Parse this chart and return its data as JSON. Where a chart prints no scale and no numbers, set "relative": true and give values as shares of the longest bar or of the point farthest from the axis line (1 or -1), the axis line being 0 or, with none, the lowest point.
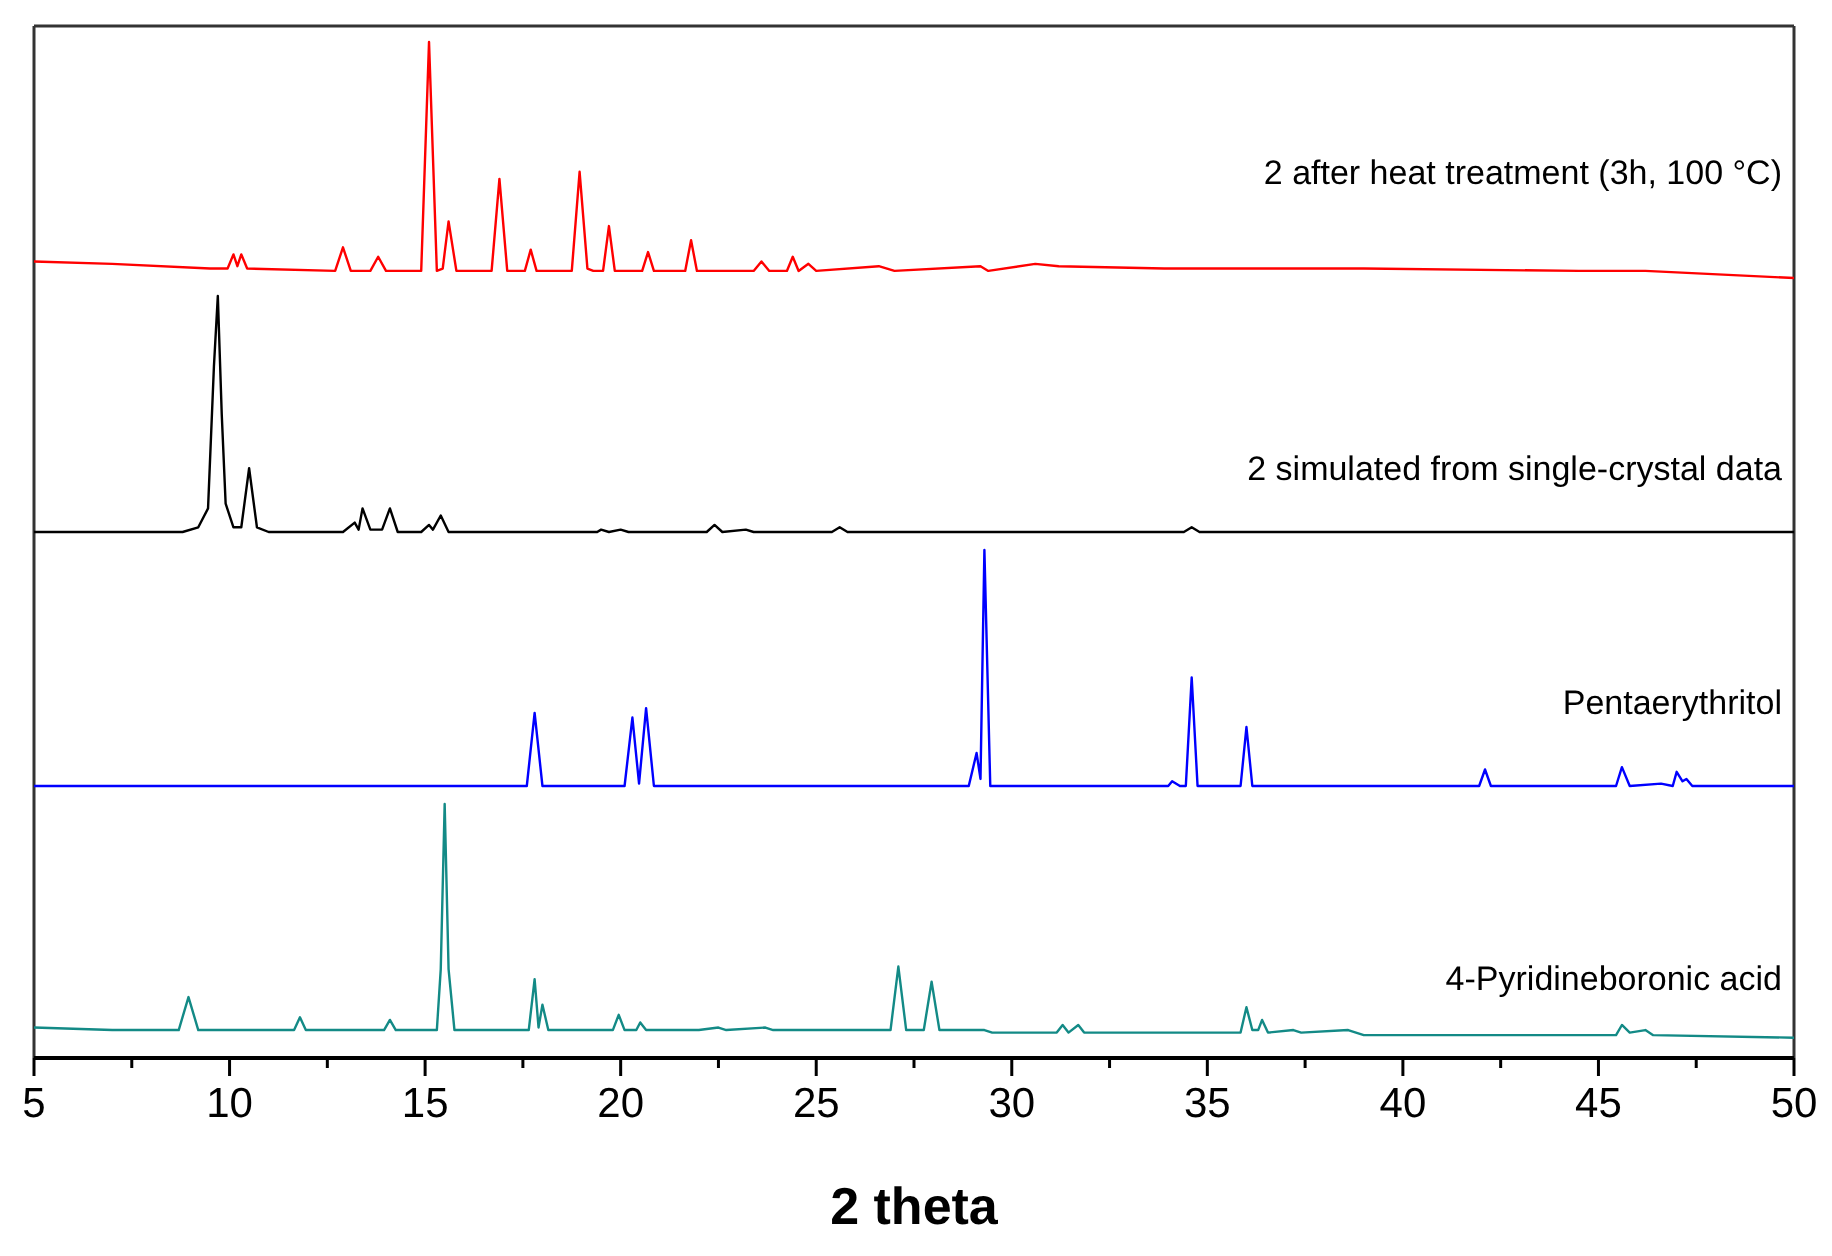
{
  "chart_data": [
    {
      "type": "line",
      "relative": true,
      "xlim": [
        5,
        50
      ],
      "tick_labels": false,
      "x": [
        5,
        7,
        9.5,
        9.95,
        10.1,
        10.2,
        10.3,
        10.45,
        12.7,
        12.9,
        13.1,
        13.6,
        13.8,
        14.0,
        14.9,
        15.1,
        15.3,
        15.45,
        15.6,
        15.8,
        16.7,
        16.9,
        17.1,
        17.55,
        17.7,
        17.85,
        18.75,
        18.95,
        19.15,
        19.3,
        19.55,
        19.7,
        19.85,
        20.55,
        20.7,
        20.85,
        21.65,
        21.8,
        21.95,
        23.4,
        23.6,
        23.8,
        24.25,
        24.4,
        24.55,
        24.8,
        25,
        26.6,
        27,
        29.2,
        29.4,
        30.6,
        31.2,
        33.9,
        37.6,
        39,
        44.5,
        46.2,
        50
      ],
      "series": [
        {
          "name": "2 after heat treatment (3h, 100 °C)",
          "color": "#ff0000",
          "values": [
            0.07,
            0.06,
            0.04,
            0.04,
            0.1,
            0.05,
            0.1,
            0.04,
            0.03,
            0.13,
            0.03,
            0.03,
            0.09,
            0.03,
            0.03,
            1.0,
            0.03,
            0.04,
            0.24,
            0.03,
            0.03,
            0.42,
            0.03,
            0.03,
            0.12,
            0.03,
            0.03,
            0.45,
            0.04,
            0.03,
            0.03,
            0.22,
            0.03,
            0.03,
            0.11,
            0.03,
            0.03,
            0.16,
            0.03,
            0.03,
            0.07,
            0.03,
            0.03,
            0.09,
            0.03,
            0.06,
            0.03,
            0.05,
            0.03,
            0.05,
            0.03,
            0.06,
            0.05,
            0.04,
            0.04,
            0.04,
            0.03,
            0.03,
            0.0
          ]
        }
      ]
    },
    {
      "type": "line",
      "relative": true,
      "xlim": [
        5,
        50
      ],
      "tick_labels": false,
      "x": [
        5,
        8.8,
        9.2,
        9.45,
        9.6,
        9.7,
        9.8,
        9.9,
        10.1,
        10.3,
        10.5,
        10.7,
        11,
        12.9,
        13.2,
        13.3,
        13.4,
        13.6,
        13.9,
        14.1,
        14.3,
        14.9,
        15.1,
        15.2,
        15.4,
        15.6,
        19.4,
        19.5,
        19.7,
        20,
        20.2,
        22.2,
        22.4,
        22.6,
        23.2,
        23.4,
        25.4,
        25.6,
        25.8,
        34.4,
        34.6,
        34.8,
        50
      ],
      "series": [
        {
          "name": "2 simulated from single-crystal data",
          "color": "#000000",
          "values": [
            0,
            0,
            0.02,
            0.1,
            0.7,
            1.0,
            0.5,
            0.12,
            0.02,
            0.02,
            0.27,
            0.02,
            0,
            0,
            0.04,
            0.01,
            0.1,
            0.01,
            0.01,
            0.1,
            0,
            0,
            0.03,
            0.01,
            0.07,
            0,
            0,
            0.01,
            0,
            0.01,
            0,
            0,
            0.03,
            0,
            0.01,
            0,
            0,
            0.02,
            0,
            0,
            0.02,
            0,
            0
          ]
        }
      ]
    },
    {
      "type": "line",
      "relative": true,
      "xlim": [
        5,
        50
      ],
      "tick_labels": false,
      "x": [
        5,
        17.6,
        17.8,
        18.0,
        20.1,
        20.3,
        20.47,
        20.65,
        20.85,
        28.9,
        29.1,
        29.2,
        29.3,
        29.45,
        34.0,
        34.1,
        34.3,
        34.45,
        34.6,
        34.75,
        35.85,
        36.0,
        36.15,
        41.95,
        42.1,
        42.25,
        45.45,
        45.6,
        45.8,
        46.6,
        46.9,
        47.0,
        47.15,
        47.25,
        47.4,
        50
      ],
      "series": [
        {
          "name": "Pentaerythritol",
          "color": "#0000ff",
          "values": [
            0,
            0,
            0.31,
            0,
            0,
            0.29,
            0.01,
            0.33,
            0,
            0,
            0.14,
            0.03,
            1.0,
            0,
            0,
            0.02,
            0,
            0,
            0.46,
            0,
            0,
            0.25,
            0,
            0,
            0.07,
            0,
            0,
            0.08,
            0,
            0.01,
            0,
            0.06,
            0.02,
            0.03,
            0,
            0
          ]
        }
      ]
    },
    {
      "type": "line",
      "relative": true,
      "xlim": [
        5,
        50
      ],
      "tick_labels": "x",
      "xlabel": "2 theta",
      "xticks": [
        5,
        {
          "value": 7.5,
          "label": null
        },
        10,
        {
          "value": 12.5,
          "label": null
        },
        15,
        {
          "value": 17.5,
          "label": null
        },
        20,
        {
          "value": 22.5,
          "label": null
        },
        25,
        {
          "value": 27.5,
          "label": null
        },
        30,
        {
          "value": 32.5,
          "label": null
        },
        35,
        {
          "value": 37.5,
          "label": null
        },
        40,
        {
          "value": 42.5,
          "label": null
        },
        45,
        {
          "value": 47.5,
          "label": null
        },
        50
      ],
      "x": [
        5,
        7,
        8.7,
        8.95,
        9.2,
        11.65,
        11.8,
        11.95,
        13.95,
        14.1,
        14.25,
        15.3,
        15.4,
        15.5,
        15.6,
        15.75,
        17.65,
        17.8,
        17.9,
        18.0,
        18.15,
        19.8,
        19.95,
        20.1,
        20.4,
        20.5,
        20.65,
        22,
        22.5,
        22.7,
        23.7,
        23.9,
        26.9,
        27.1,
        27.3,
        27.75,
        27.95,
        28.15,
        29.3,
        29.5,
        31.15,
        31.3,
        31.45,
        31.7,
        31.85,
        35.85,
        36.0,
        36.15,
        36.3,
        36.4,
        36.55,
        37.2,
        37.4,
        38.6,
        39,
        45.45,
        45.6,
        45.8,
        46.2,
        46.4,
        50
      ],
      "series": [
        {
          "name": "4-Pyridineboronic acid",
          "color": "#138a86",
          "values": [
            0.12,
            0.11,
            0.11,
            0.24,
            0.11,
            0.11,
            0.16,
            0.11,
            0.11,
            0.15,
            0.11,
            0.11,
            0.35,
            1.0,
            0.35,
            0.11,
            0.11,
            0.31,
            0.12,
            0.21,
            0.11,
            0.11,
            0.17,
            0.11,
            0.11,
            0.14,
            0.11,
            0.11,
            0.12,
            0.11,
            0.12,
            0.11,
            0.11,
            0.36,
            0.11,
            0.11,
            0.3,
            0.11,
            0.11,
            0.1,
            0.1,
            0.13,
            0.1,
            0.13,
            0.1,
            0.1,
            0.2,
            0.11,
            0.11,
            0.15,
            0.1,
            0.11,
            0.1,
            0.11,
            0.09,
            0.09,
            0.13,
            0.1,
            0.11,
            0.09,
            0.08
          ]
        }
      ]
    }
  ]
}
